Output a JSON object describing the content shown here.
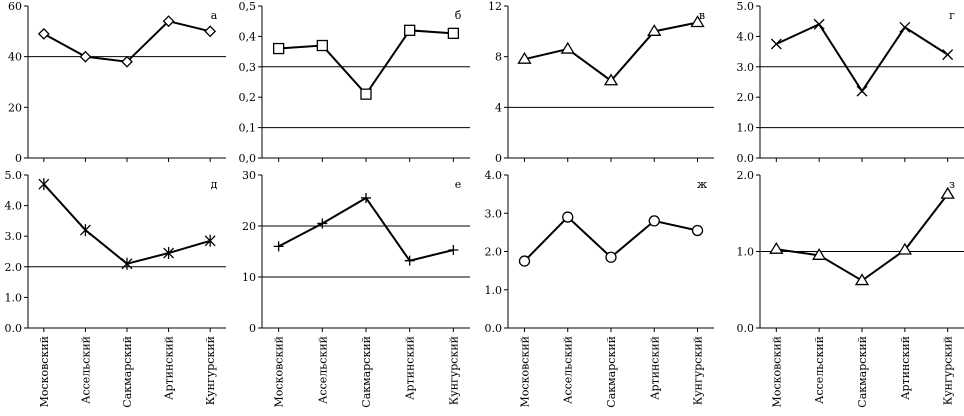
{
  "chart_data": [
    {
      "label": "а",
      "type": "line",
      "categories": [
        "Московский",
        "Ассельский",
        "Сакмарский",
        "Артинский",
        "Кунгурский"
      ],
      "values": [
        49,
        40,
        38,
        54,
        50
      ],
      "ylim": [
        0,
        60
      ],
      "yticks": [
        "0",
        "20",
        "40",
        "60"
      ],
      "hlines": [
        40
      ],
      "marker": "diamond"
    },
    {
      "label": "б",
      "type": "line",
      "categories": [
        "Московский",
        "Ассельский",
        "Сакмарский",
        "Артинский",
        "Кунгурский"
      ],
      "values": [
        0.36,
        0.37,
        0.21,
        0.42,
        0.41
      ],
      "ylim": [
        0,
        0.5
      ],
      "yticks": [
        "0,0",
        "0,1",
        "0,2",
        "0,3",
        "0,4",
        "0,5"
      ],
      "hlines": [
        0.1,
        0.3
      ],
      "marker": "square"
    },
    {
      "label": "в",
      "type": "line",
      "categories": [
        "Московский",
        "Ассельский",
        "Сакмарский",
        "Артинский",
        "Кунгурский"
      ],
      "values": [
        7.8,
        8.6,
        6.1,
        10.0,
        10.7
      ],
      "ylim": [
        0,
        12
      ],
      "yticks": [
        "0",
        "4",
        "8",
        "12"
      ],
      "hlines": [
        4
      ],
      "marker": "triangle"
    },
    {
      "label": "г",
      "type": "line",
      "categories": [
        "Московский",
        "Ассельский",
        "Сакмарский",
        "Артинский",
        "Кунгурский"
      ],
      "values": [
        3.75,
        4.4,
        2.2,
        4.3,
        3.4
      ],
      "ylim": [
        0,
        5
      ],
      "yticks": [
        "0.0",
        "1.0",
        "2.0",
        "3.0",
        "4.0",
        "5.0"
      ],
      "hlines": [
        1.0,
        3.0
      ],
      "marker": "x"
    },
    {
      "label": "д",
      "type": "line",
      "categories": [
        "Московский",
        "Ассельский",
        "Сакмарский",
        "Артинский",
        "Кунгурский"
      ],
      "values": [
        4.7,
        3.2,
        2.1,
        2.45,
        2.85
      ],
      "ylim": [
        0,
        5
      ],
      "yticks": [
        "0.0",
        "1.0",
        "2.0",
        "3.0",
        "4.0",
        "5.0"
      ],
      "hlines": [
        2.0
      ],
      "marker": "star"
    },
    {
      "label": "е",
      "type": "line",
      "categories": [
        "Московский",
        "Ассельский",
        "Сакмарский",
        "Артинский",
        "Кунгурский"
      ],
      "values": [
        16,
        20.5,
        25.5,
        13.2,
        15.3
      ],
      "ylim": [
        0,
        30
      ],
      "yticks": [
        "0",
        "10",
        "20",
        "30"
      ],
      "hlines": [
        10,
        20
      ],
      "marker": "plus"
    },
    {
      "label": "ж",
      "type": "line",
      "categories": [
        "Московский",
        "Ассельский",
        "Сакмарский",
        "Артинский",
        "Кунгурский"
      ],
      "values": [
        1.75,
        2.9,
        1.85,
        2.8,
        2.55
      ],
      "ylim": [
        0,
        4
      ],
      "yticks": [
        "0.0",
        "1.0",
        "2.0",
        "3.0",
        "4.0"
      ],
      "hlines": [],
      "marker": "circle"
    },
    {
      "label": "з",
      "type": "line",
      "categories": [
        "Московский",
        "Ассельский",
        "Сакмарский",
        "Артинский",
        "Кунгурский"
      ],
      "values": [
        1.03,
        0.95,
        0.62,
        1.02,
        1.75
      ],
      "ylim": [
        0,
        2
      ],
      "yticks": [
        "0.0",
        "1.0",
        "2.0"
      ],
      "hlines": [
        1.0
      ],
      "marker": "triangle"
    }
  ]
}
